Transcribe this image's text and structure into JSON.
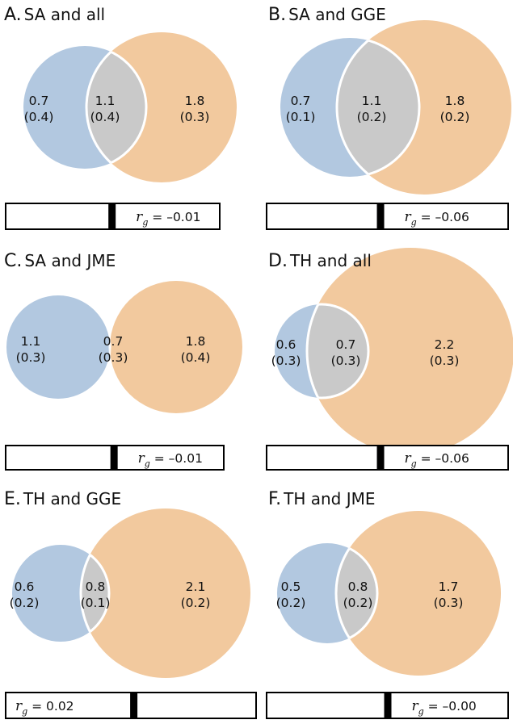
{
  "colors": {
    "left_circle": "#b2c8e0",
    "right_circle": "#f2c99e",
    "overlap": "#c9c9c9",
    "outline": "#ffffff",
    "marker": "#000000",
    "marker_shade": "#c7c9ea"
  },
  "panels": [
    {
      "letter": "A.",
      "title": "SA and all",
      "left": {
        "value": "0.7",
        "se": "(0.4)"
      },
      "overlap": {
        "value": "1.1",
        "se": "(0.4)"
      },
      "right": {
        "value": "1.8",
        "se": "(0.3)"
      },
      "rg": {
        "symbol": "r",
        "subscript": "g",
        "text": " = –0.01",
        "value": -0.01
      }
    },
    {
      "letter": "B.",
      "title": "SA and GGE",
      "left": {
        "value": "0.7",
        "se": "(0.1)"
      },
      "overlap": {
        "value": "1.1",
        "se": "(0.2)"
      },
      "right": {
        "value": "1.8",
        "se": "(0.2)"
      },
      "rg": {
        "symbol": "r",
        "subscript": "g",
        "text": " = –0.06",
        "value": -0.06
      }
    },
    {
      "letter": "C.",
      "title": "SA and JME",
      "left": {
        "value": "1.1",
        "se": "(0.3)"
      },
      "overlap": {
        "value": "0.7",
        "se": "(0.3)"
      },
      "right": {
        "value": "1.8",
        "se": "(0.4)"
      },
      "rg": {
        "symbol": "r",
        "subscript": "g",
        "text": " = –0.01",
        "value": -0.01
      }
    },
    {
      "letter": "D.",
      "title": "TH and all",
      "left": {
        "value": "0.6",
        "se": "(0.3)"
      },
      "overlap": {
        "value": "0.7",
        "se": "(0.3)"
      },
      "right": {
        "value": "2.2",
        "se": "(0.3)"
      },
      "rg": {
        "symbol": "r",
        "subscript": "g",
        "text": " = –0.06",
        "value": -0.06
      }
    },
    {
      "letter": "E.",
      "title": "TH and GGE",
      "left": {
        "value": "0.6",
        "se": "(0.2)"
      },
      "overlap": {
        "value": "0.8",
        "se": "(0.1)"
      },
      "right": {
        "value": "2.1",
        "se": "(0.2)"
      },
      "rg": {
        "symbol": "r",
        "subscript": "g",
        "text": " = 0.02",
        "value": 0.02
      }
    },
    {
      "letter": "F.",
      "title": "TH and JME",
      "left": {
        "value": "0.5",
        "se": "(0.2)"
      },
      "overlap": {
        "value": "0.8",
        "se": "(0.2)"
      },
      "right": {
        "value": "1.7",
        "se": "(0.3)"
      },
      "rg": {
        "symbol": "r",
        "subscript": "g",
        "text": " = –0.00",
        "value": -0.0
      }
    }
  ]
}
